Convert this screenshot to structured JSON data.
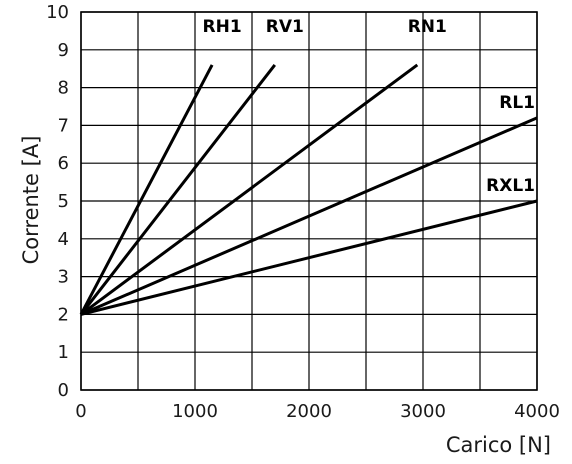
{
  "chart_data": {
    "type": "line",
    "title": "",
    "xlabel": "Carico [N]",
    "ylabel": "Corrente [A]",
    "xlim": [
      0,
      4000
    ],
    "ylim": [
      0,
      10
    ],
    "x_ticks": [
      "0",
      "1000",
      "2000",
      "3000",
      "4000"
    ],
    "y_ticks": [
      "0",
      "1",
      "2",
      "3",
      "4",
      "5",
      "6",
      "7",
      "8",
      "9",
      "10"
    ],
    "grid": true,
    "legend": "none",
    "line_color": "#000000",
    "grid_color": "#000000",
    "series": [
      {
        "name": "RH1",
        "x": [
          0,
          1150
        ],
        "y": [
          2,
          8.6
        ]
      },
      {
        "name": "RV1",
        "x": [
          0,
          1700
        ],
        "y": [
          2,
          8.6
        ]
      },
      {
        "name": "RN1",
        "x": [
          0,
          2950
        ],
        "y": [
          2,
          8.6
        ]
      },
      {
        "name": "RL1",
        "x": [
          0,
          4000
        ],
        "y": [
          2,
          7.2
        ]
      },
      {
        "name": "RXL1",
        "x": [
          0,
          4000
        ],
        "y": [
          2,
          5.0
        ]
      }
    ]
  }
}
